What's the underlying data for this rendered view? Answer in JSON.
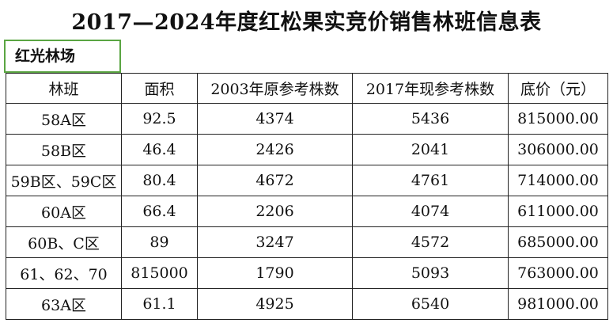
{
  "header": {
    "title": "2017—2024年度红松果实竞价销售林班信息表",
    "site": "红光林场"
  },
  "table": {
    "columns": [
      "林班",
      "面积",
      "2003年原参考株数",
      "2017年现参考株数",
      "底价（元）"
    ],
    "rows": [
      [
        "58A区",
        "92.5",
        "4374",
        "5436",
        "815000.00"
      ],
      [
        "58B区",
        "46.4",
        "2426",
        "2041",
        "306000.00"
      ],
      [
        "59B区、59C区",
        "80.4",
        "4672",
        "4761",
        "714000.00"
      ],
      [
        "60A区",
        "66.4",
        "2206",
        "4074",
        "611000.00"
      ],
      [
        "60B、C区",
        "89",
        "3247",
        "4572",
        "685000.00"
      ],
      [
        "61、62、70",
        "815000",
        "1790",
        "5093",
        "763000.00"
      ],
      [
        "63A区",
        "61.1",
        "4925",
        "6540",
        "981000.00"
      ]
    ]
  }
}
